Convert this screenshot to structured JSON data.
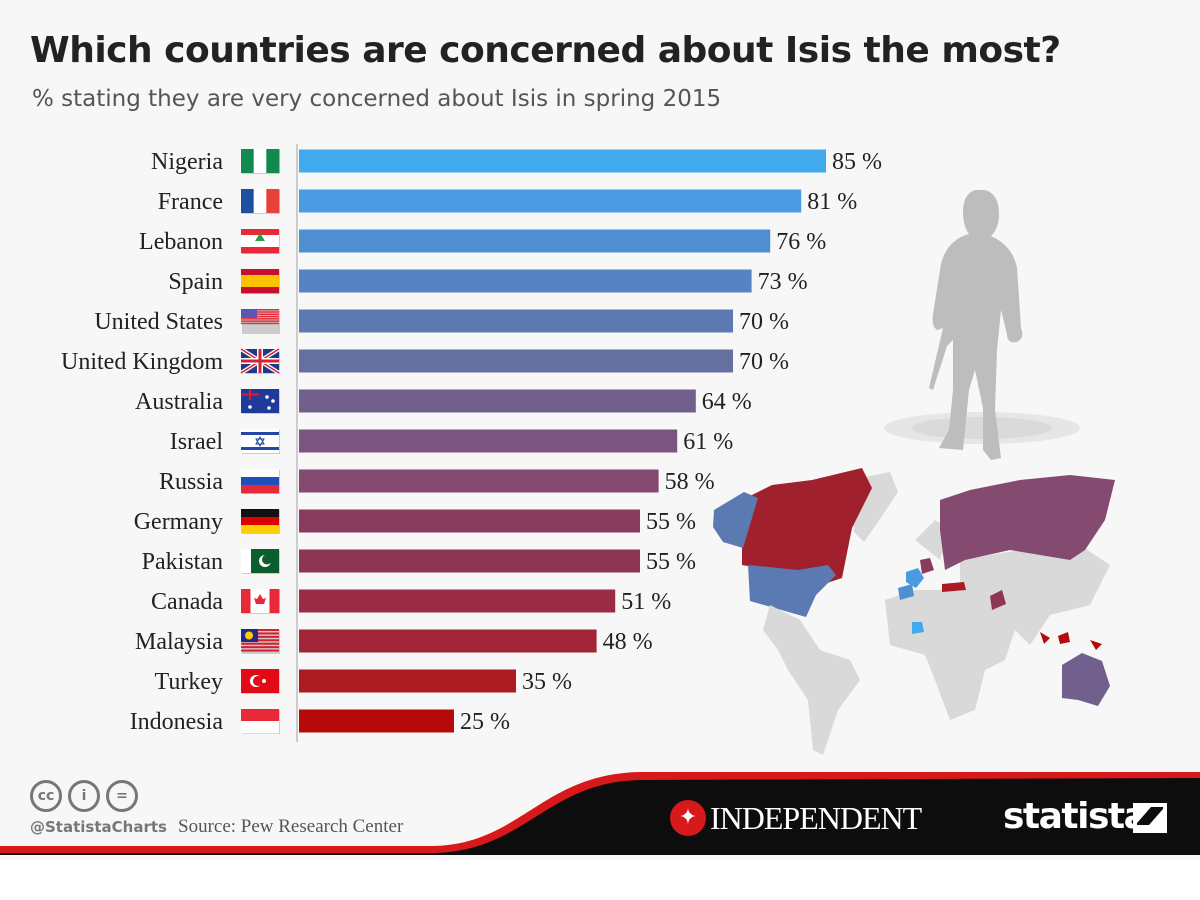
{
  "title": "Which countries are concerned about Isis the most?",
  "subtitle": "% stating they are very concerned about Isis in spring 2015",
  "chart_data": {
    "type": "bar",
    "orientation": "horizontal",
    "title": "Which countries are concerned about Isis the most?",
    "subtitle": "% stating they are very concerned about Isis in spring 2015",
    "categories": [
      "Nigeria",
      "France",
      "Lebanon",
      "Spain",
      "United States",
      "United Kingdom",
      "Australia",
      "Israel",
      "Russia",
      "Germany",
      "Pakistan",
      "Canada",
      "Malaysia",
      "Turkey",
      "Indonesia"
    ],
    "values": [
      85,
      81,
      76,
      73,
      70,
      70,
      64,
      61,
      58,
      55,
      55,
      51,
      48,
      35,
      25
    ],
    "value_suffix": " %",
    "colors": [
      "#41a9ee",
      "#4a9be2",
      "#4e8fd2",
      "#5684c2",
      "#5c7ab2",
      "#6670a0",
      "#715f8e",
      "#7b5480",
      "#844a70",
      "#8a3c5f",
      "#8e3552",
      "#9b2c45",
      "#a22538",
      "#ac1a22",
      "#b40a0a"
    ],
    "xlim": [
      0,
      100
    ],
    "grid": false
  },
  "footer": {
    "license_icons": [
      "cc-icon",
      "by-icon",
      "nd-icon"
    ],
    "license_glyphs": [
      "cc",
      "i",
      "="
    ],
    "handle": "@StatistaCharts",
    "source": "Source: Pew Research Center",
    "partner": "INDEPENDENT",
    "brand": "statista"
  },
  "colors": {
    "footer_red": "#d7191c",
    "footer_black": "#0d0d0d",
    "map_grey": "#d9d9d9"
  }
}
